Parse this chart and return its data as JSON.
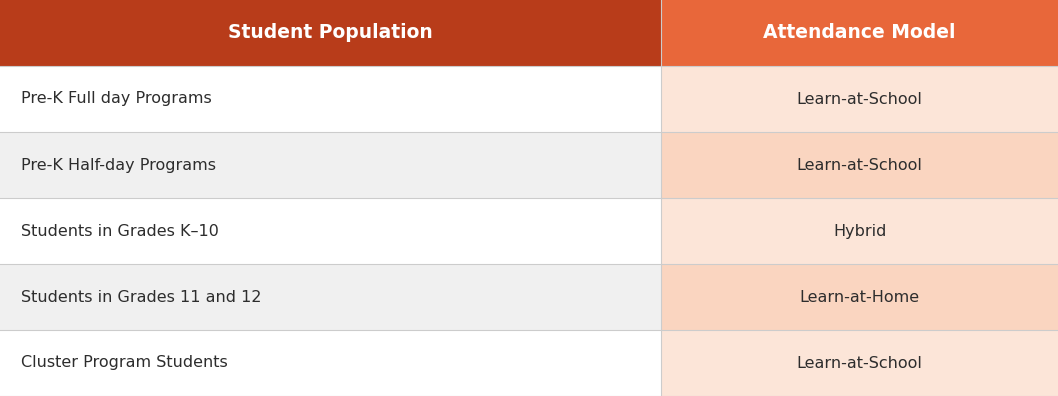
{
  "header": [
    "Student Population",
    "Attendance Model"
  ],
  "header_bg_colors": [
    "#b83c1a",
    "#e8673a"
  ],
  "header_text_color": "#ffffff",
  "rows": [
    {
      "population": "Pre-K Full day Programs",
      "model": "Learn-at-School",
      "left_bg": "#ffffff",
      "right_bg": "#fce5d8"
    },
    {
      "population": "Pre-K Half-day Programs",
      "model": "Learn-at-School",
      "left_bg": "#f0f0f0",
      "right_bg": "#fad5c0"
    },
    {
      "population": "Students in Grades K–10",
      "model": "Hybrid",
      "left_bg": "#ffffff",
      "right_bg": "#fce5d8"
    },
    {
      "population": "Students in Grades 11 and 12",
      "model": "Learn-at-Home",
      "left_bg": "#f0f0f0",
      "right_bg": "#fad5c0"
    },
    {
      "population": "Cluster Program Students",
      "model": "Learn-at-School",
      "left_bg": "#ffffff",
      "right_bg": "#fce5d8"
    }
  ],
  "row_text_color": "#2d2d2d",
  "fig_width": 10.58,
  "fig_height": 3.96,
  "col_split": 0.625,
  "separator_color": "#cccccc",
  "separator_lw": 0.8
}
